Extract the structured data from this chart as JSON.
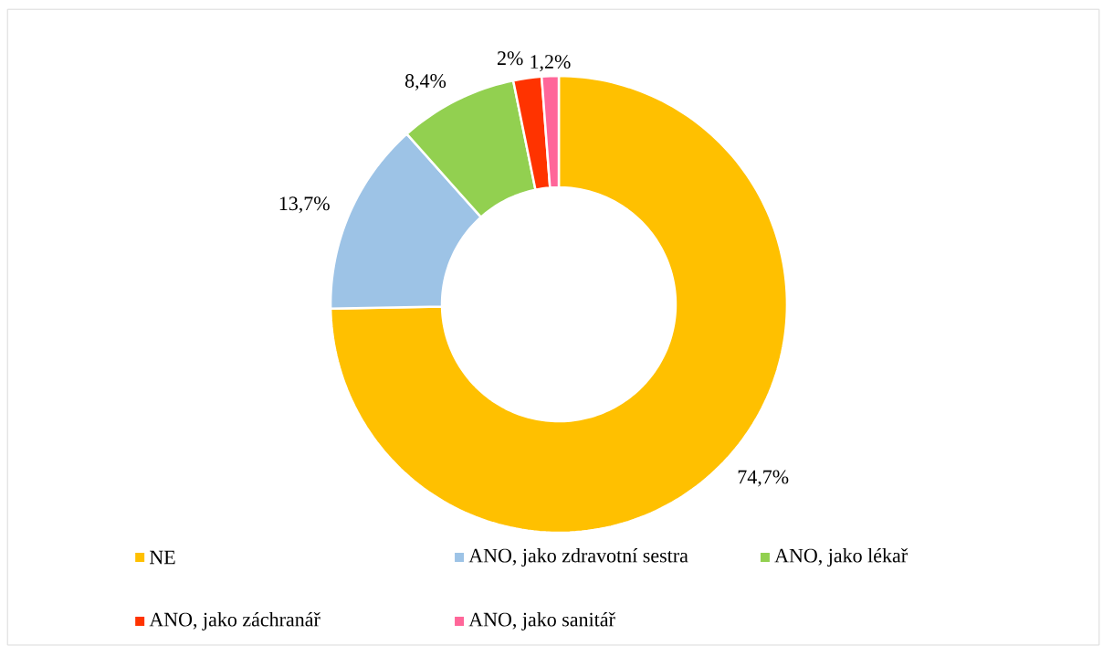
{
  "chart_data": {
    "type": "donut",
    "categories": [
      "NE",
      "ANO, jako zdravotní sestra",
      "ANO, jako lékař",
      "ANO, jako záchranář",
      "ANO, jako sanitář"
    ],
    "values": [
      74.7,
      13.7,
      8.4,
      2,
      1.2
    ],
    "value_labels": [
      "74,7%",
      "13,7%",
      "8,4%",
      "2%",
      "1,2%"
    ],
    "colors": [
      "#ffc000",
      "#9dc3e6",
      "#92d050",
      "#ff3300",
      "#ff6699"
    ],
    "legend": "bottom"
  }
}
